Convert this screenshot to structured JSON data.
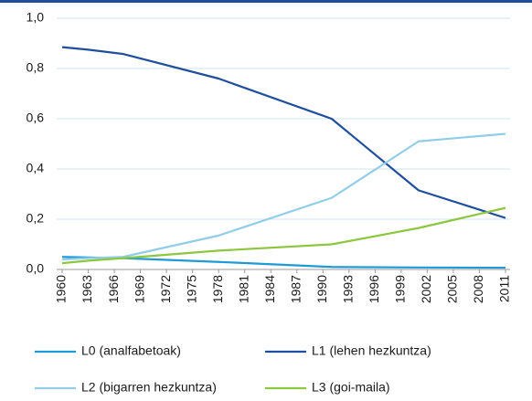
{
  "chart_data": {
    "type": "line",
    "x": [
      1960,
      1963,
      1967,
      1978,
      1991,
      2001,
      2011
    ],
    "xlim": [
      1960,
      2011
    ],
    "xticks": [
      1960,
      1963,
      1966,
      1969,
      1972,
      1975,
      1978,
      1981,
      1984,
      1987,
      1990,
      1993,
      1996,
      1999,
      2002,
      2005,
      2008,
      2011
    ],
    "ylim": [
      0,
      1
    ],
    "yticks": [
      {
        "value": 0,
        "label": "0,0"
      },
      {
        "value": 0.2,
        "label": "0,2"
      },
      {
        "value": 0.4,
        "label": "0,4"
      },
      {
        "value": 0.6,
        "label": "0,6"
      },
      {
        "value": 0.8,
        "label": "0,8"
      },
      {
        "value": 1,
        "label": "1,0"
      }
    ],
    "grid": true,
    "series": [
      {
        "name": "L0 (analfabetoak)",
        "color": "#1f9ad6",
        "values": [
          0.05,
          0.048,
          0.045,
          0.03,
          0.01,
          0.008,
          0.007
        ]
      },
      {
        "name": "L1 (lehen hezkuntza)",
        "color": "#1f4e9c",
        "values": [
          0.885,
          0.875,
          0.858,
          0.76,
          0.6,
          0.315,
          0.205
        ]
      },
      {
        "name": "L2 (bigarren hezkuntza)",
        "color": "#92cde8",
        "values": [
          0.04,
          0.045,
          0.05,
          0.135,
          0.285,
          0.51,
          0.54
        ]
      },
      {
        "name": "L3 (goi-maila)",
        "color": "#8dc63f",
        "values": [
          0.025,
          0.035,
          0.045,
          0.075,
          0.1,
          0.165,
          0.245
        ]
      }
    ]
  }
}
